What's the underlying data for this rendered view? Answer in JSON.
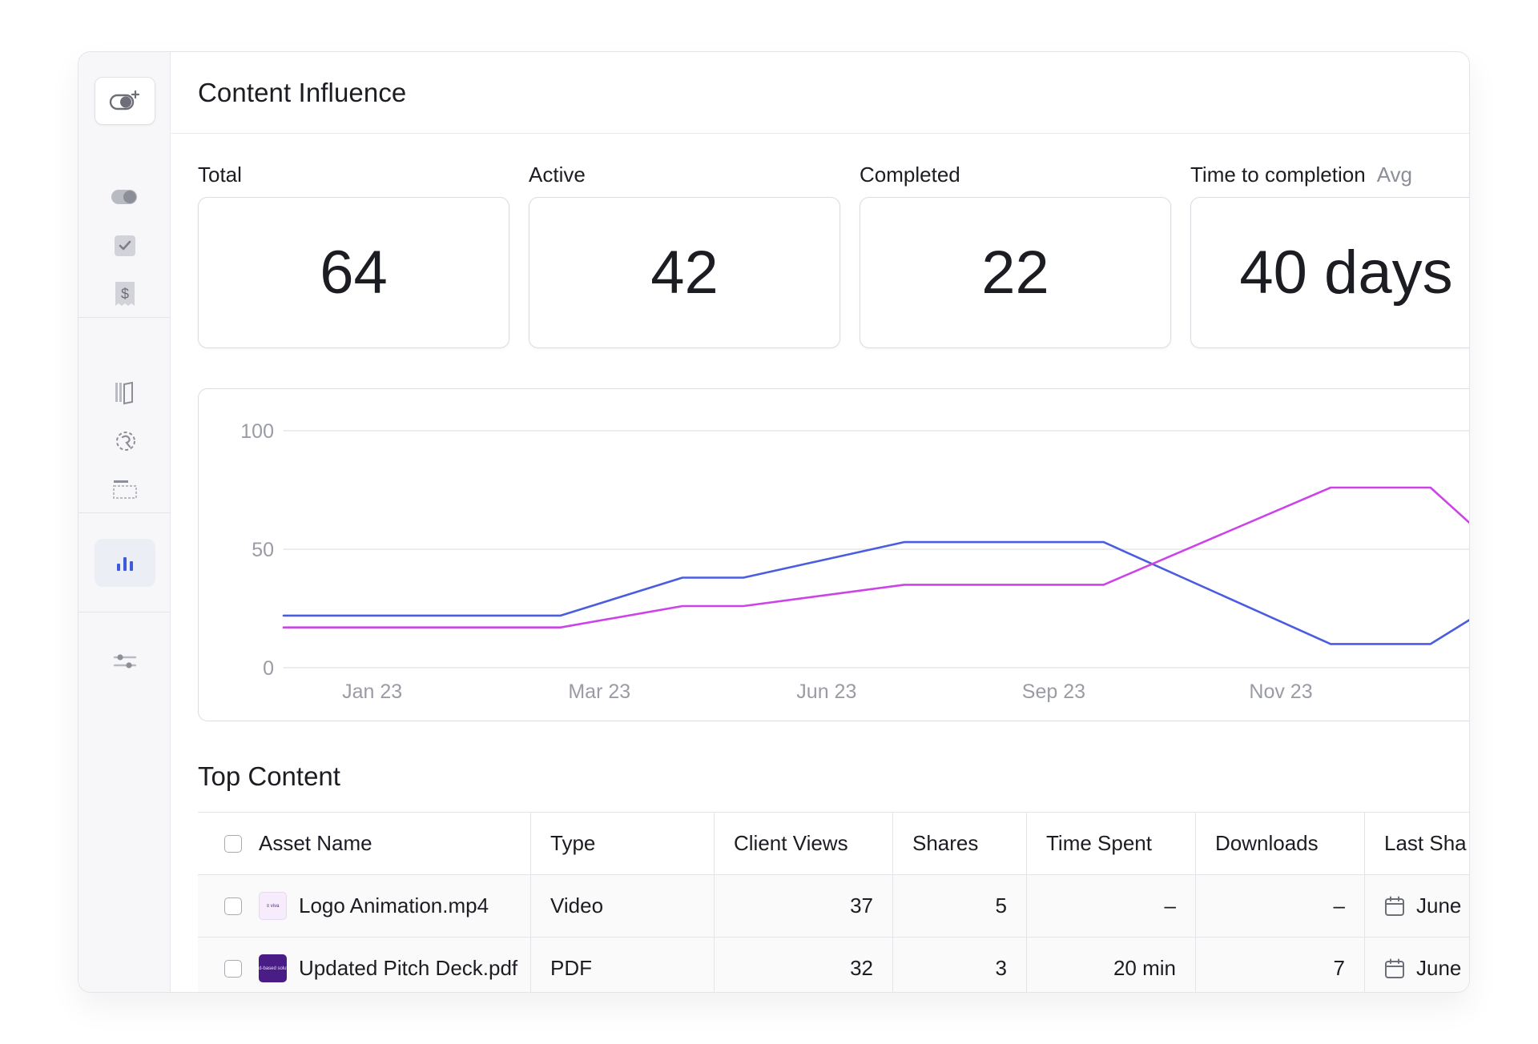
{
  "page": {
    "title": "Content Influence"
  },
  "sidebar": {
    "items": [
      {
        "name": "create",
        "icon": "toggle-plus-icon"
      },
      {
        "name": "toggles",
        "icon": "toggle-icon"
      },
      {
        "name": "tasks",
        "icon": "checkbox-icon"
      },
      {
        "name": "billing",
        "icon": "receipt-dollar-icon"
      },
      {
        "name": "library",
        "icon": "books-icon"
      },
      {
        "name": "history",
        "icon": "history-icon"
      },
      {
        "name": "layout",
        "icon": "layout-icon"
      },
      {
        "name": "analytics",
        "icon": "bar-chart-icon",
        "active": true
      },
      {
        "name": "settings",
        "icon": "sliders-icon"
      }
    ],
    "accent": "#3d5bd9"
  },
  "stats": {
    "total": {
      "label": "Total",
      "value": "64"
    },
    "active": {
      "label": "Active",
      "value": "42"
    },
    "completed": {
      "label": "Completed",
      "value": "22"
    },
    "time": {
      "label": "Time to completion",
      "sublabel": "Avg",
      "value": "40 days"
    }
  },
  "chart_data": {
    "type": "line",
    "title": "",
    "xlabel": "",
    "ylabel": "",
    "y_ticks": [
      "100",
      "50",
      "0"
    ],
    "x_tick_labels": [
      "Jan 23",
      "Mar 23",
      "Jun 23",
      "Sep 23",
      "Nov 23"
    ],
    "ylim": [
      0,
      100
    ],
    "grid": true,
    "series": [
      {
        "color": "#4a5ce0",
        "points": [
          [
            0,
            22
          ],
          [
            2.5,
            22
          ],
          [
            3.6,
            38
          ],
          [
            4.15,
            38
          ],
          [
            5.6,
            53
          ],
          [
            7.4,
            53
          ],
          [
            9.45,
            10
          ],
          [
            10.35,
            10
          ],
          [
            10.8,
            23
          ]
        ]
      },
      {
        "color": "#cc44e8",
        "points": [
          [
            0,
            17
          ],
          [
            2.5,
            17
          ],
          [
            3.6,
            26
          ],
          [
            4.15,
            26
          ],
          [
            5.6,
            35
          ],
          [
            7.4,
            35
          ],
          [
            9.45,
            76
          ],
          [
            10.35,
            76
          ],
          [
            10.8,
            57
          ]
        ]
      }
    ],
    "x_tick_positions": [
      0.8,
      2.85,
      4.9,
      6.95,
      9.0
    ]
  },
  "top_content": {
    "title": "Top Content",
    "columns": [
      "Asset Name",
      "Type",
      "Client Views",
      "Shares",
      "Time Spent",
      "Downloads",
      "Last Sha"
    ],
    "rows": [
      {
        "asset": "Logo Animation.mp4",
        "thumb_text": "≡ viva",
        "thumb_kind": "video",
        "type": "Video",
        "views": "37",
        "shares": "5",
        "time": "–",
        "downloads": "–",
        "last": "June"
      },
      {
        "asset": "Updated Pitch Deck.pdf",
        "thumb_text": "Cloud-based solutions",
        "thumb_kind": "pdf",
        "type": "PDF",
        "views": "32",
        "shares": "3",
        "time": "20 min",
        "downloads": "7",
        "last": "June"
      }
    ]
  }
}
